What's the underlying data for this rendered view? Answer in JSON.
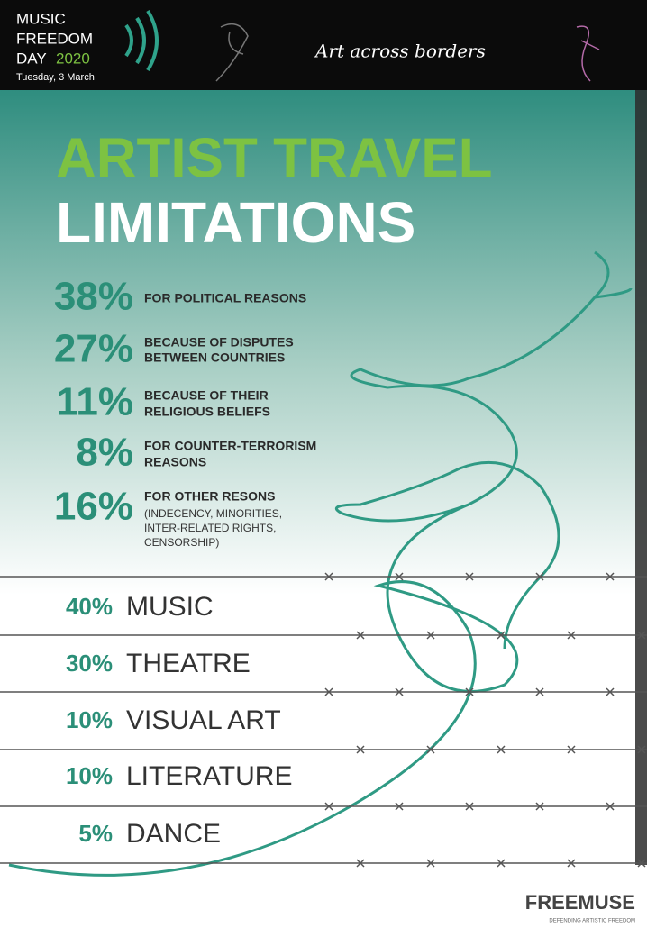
{
  "header": {
    "brand": [
      "MUSIC",
      "FREEDOM",
      "DAY"
    ],
    "year": "2020",
    "date": "Tuesday, 3 March",
    "tagline": "Art across borders"
  },
  "title": [
    "ARTIST TRAVEL",
    "LIMITATIONS"
  ],
  "reasons": [
    {
      "percent": "38%",
      "lines": [
        "FOR POLITICAL REASONS"
      ]
    },
    {
      "percent": "27%",
      "lines": [
        "BECAUSE OF DISPUTES",
        "BETWEEN COUNTRIES"
      ]
    },
    {
      "percent": "11%",
      "lines": [
        "BECAUSE OF THEIR",
        "RELIGIOUS BELIEFS"
      ]
    },
    {
      "percent": "8%",
      "lines": [
        "FOR COUNTER-TERRORISM",
        "REASONS"
      ]
    },
    {
      "percent": "16%",
      "lines": [
        "FOR OTHER RESONS",
        "(INDECENCY, MINORITIES,",
        "INTER-RELATED RIGHTS,",
        "CENSORSHIP)"
      ]
    }
  ],
  "disciplines": [
    {
      "percent": "40%",
      "label": "MUSIC"
    },
    {
      "percent": "30%",
      "label": "THEATRE"
    },
    {
      "percent": "10%",
      "label": "VISUAL ART"
    },
    {
      "percent": "10%",
      "label": "LITERATURE"
    },
    {
      "percent": "5%",
      "label": "DANCE"
    }
  ],
  "footer": {
    "logo": "FREEMUSE",
    "tagline": "DEFENDING ARTISTIC FREEDOM"
  }
}
